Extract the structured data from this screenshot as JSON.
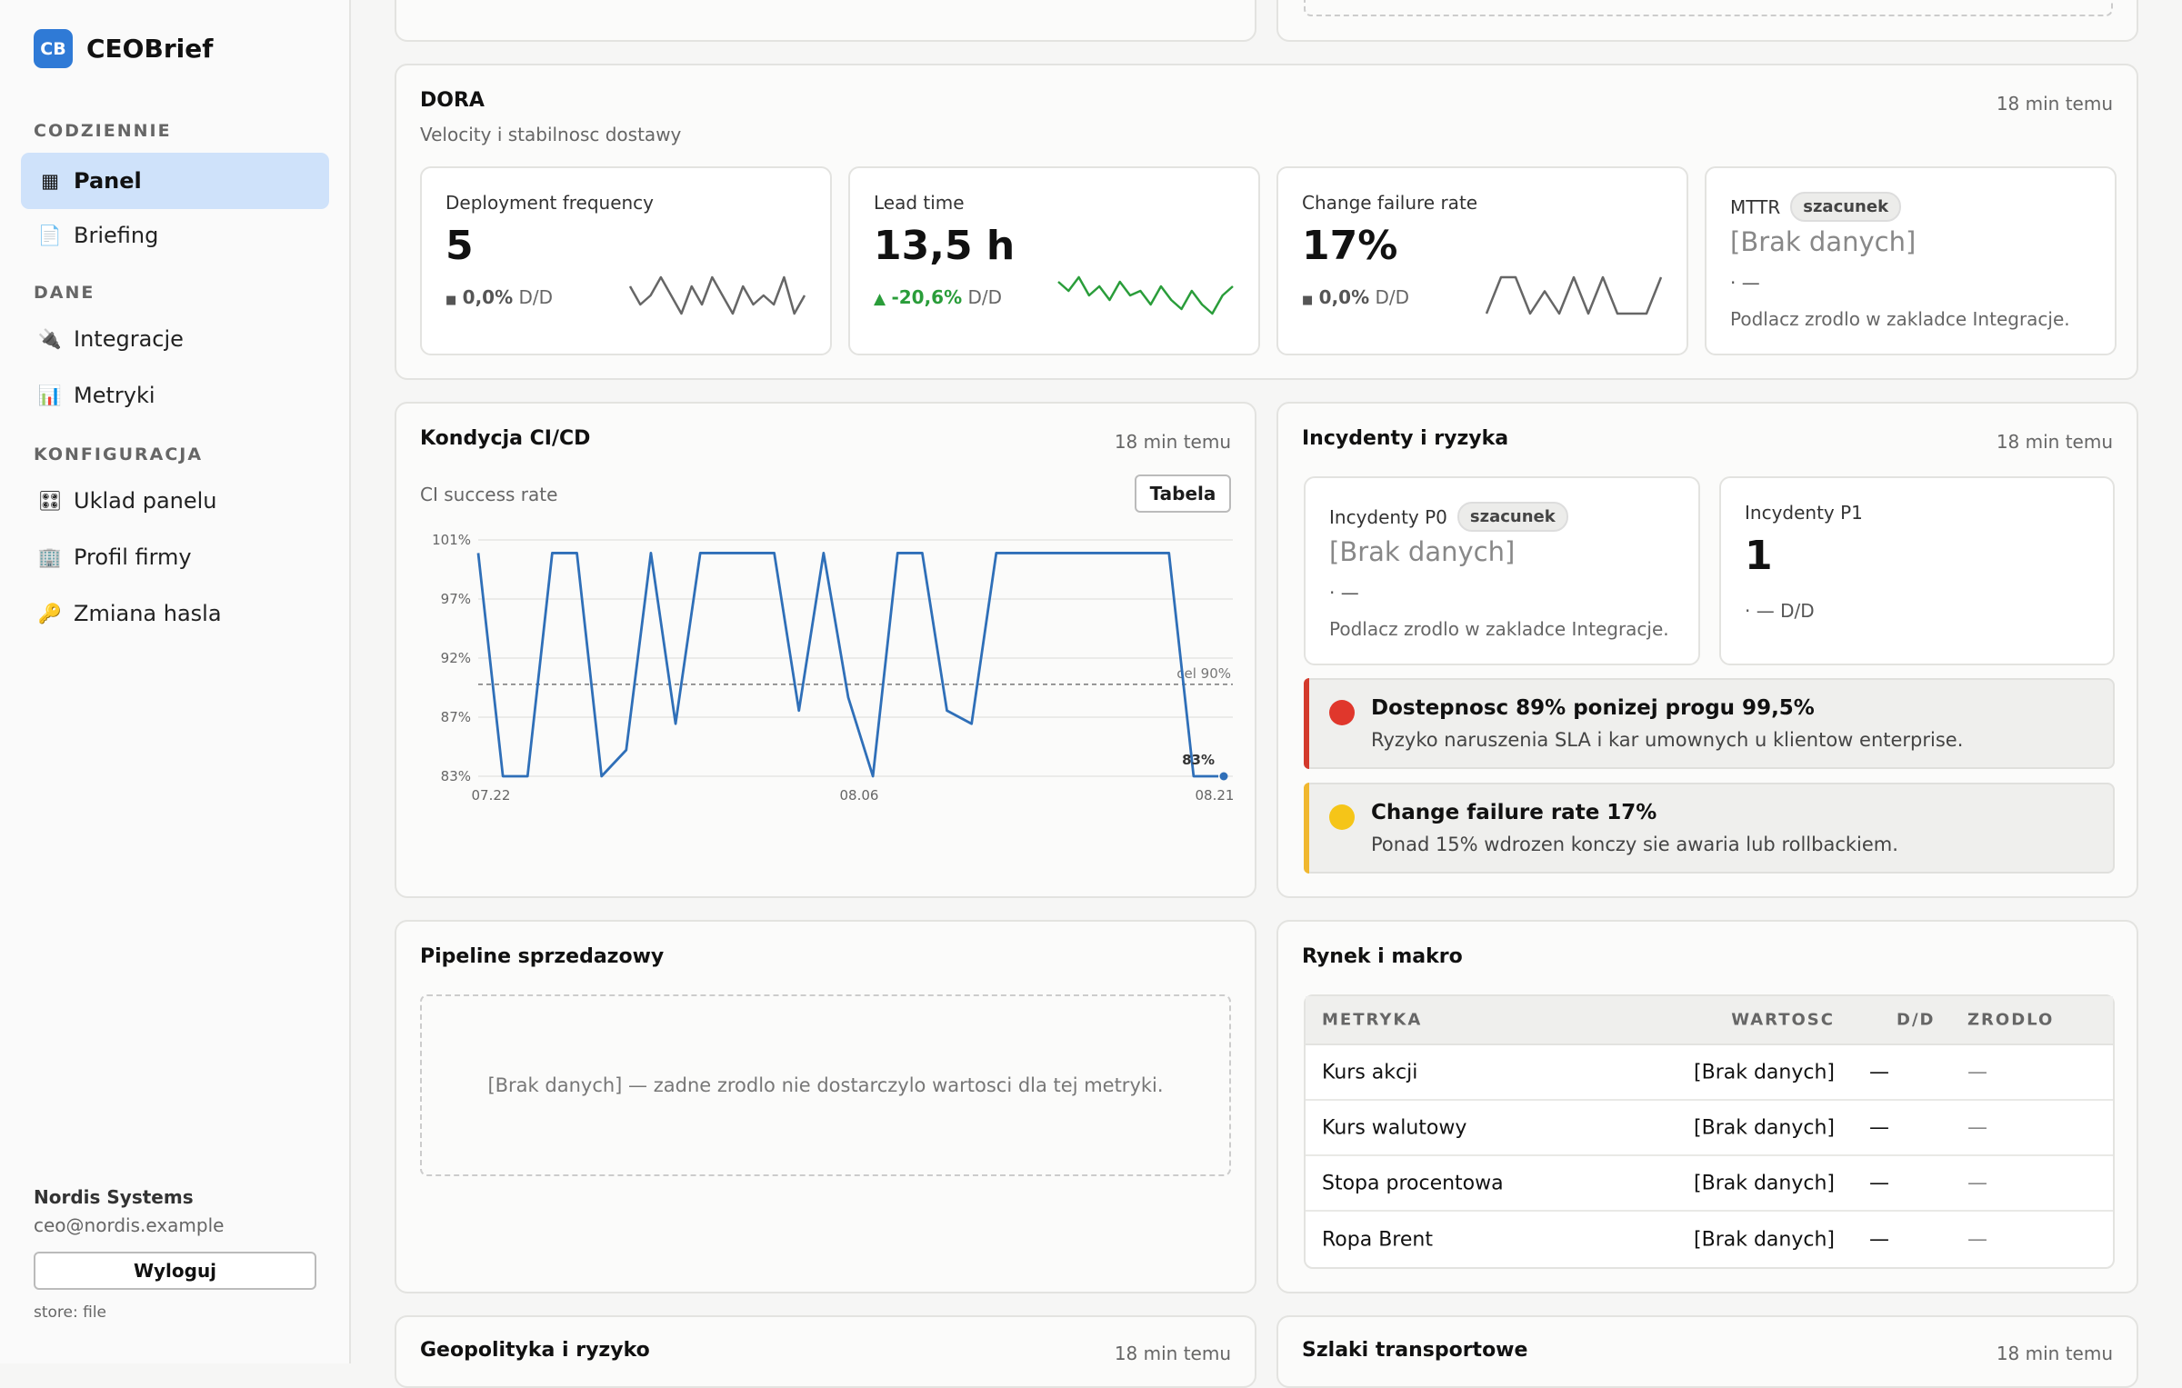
{
  "app": {
    "logo_abbr": "CB",
    "name": "CEOBrief"
  },
  "sidebar": {
    "sections": [
      "CODZIENNIE",
      "DANE",
      "KONFIGURACJA"
    ],
    "items": [
      {
        "label": "Panel",
        "icon": "dashboard-icon",
        "glyph": "▦"
      },
      {
        "label": "Briefing",
        "icon": "document-icon",
        "glyph": "📄"
      },
      {
        "label": "Integracje",
        "icon": "plug-icon",
        "glyph": "🔌"
      },
      {
        "label": "Metryki",
        "icon": "bar-chart-icon",
        "glyph": "📊"
      },
      {
        "label": "Uklad panelu",
        "icon": "sliders-icon",
        "glyph": "🎛"
      },
      {
        "label": "Profil firmy",
        "icon": "building-icon",
        "glyph": "🏢"
      },
      {
        "label": "Zmiana hasla",
        "icon": "key-icon",
        "glyph": "🔑"
      }
    ],
    "company": "Nordis Systems",
    "email": "ceo@nordis.example",
    "logout": "Wyloguj",
    "store": "store: file"
  },
  "dora": {
    "title": "DORA",
    "subtitle": "Velocity i stabilnosc dostawy",
    "time": "18 min temu",
    "cards": [
      {
        "label": "Deployment frequency",
        "value": "5",
        "delta_sym": "■",
        "delta": "0,0%",
        "delta_suffix": "D/D"
      },
      {
        "label": "Lead time",
        "value": "13,5 h",
        "delta_sym": "▲",
        "delta": "-20,6%",
        "delta_suffix": "D/D"
      },
      {
        "label": "Change failure rate",
        "value": "17%",
        "delta_sym": "■",
        "delta": "0,0%",
        "delta_suffix": "D/D"
      },
      {
        "label": "MTTR",
        "badge": "szacunek",
        "value": "[Brak danych]",
        "dots": "· —",
        "hint": "Podlacz zrodlo w zakladce Integracje."
      }
    ],
    "sparklines": [
      [
        5,
        3,
        4,
        6,
        4,
        2,
        5,
        3,
        6,
        4,
        2,
        5,
        3,
        4,
        3,
        6,
        2,
        4
      ],
      [
        14,
        12,
        15,
        11,
        13,
        10,
        14,
        11,
        12,
        9,
        13,
        10,
        8,
        12,
        9,
        7,
        11,
        13
      ],
      [
        17,
        30,
        30,
        17,
        25,
        17,
        30,
        17,
        30,
        17,
        17,
        17,
        30
      ]
    ],
    "colors": {
      "neutral": "#666666",
      "green": "#2a9d3a"
    }
  },
  "cicd": {
    "title": "Kondycja CI/CD",
    "time": "18 min temu",
    "subtitle": "CI success rate",
    "table_btn": "Tabela",
    "chart_data": {
      "type": "line",
      "series": [
        {
          "values": [
            100,
            83,
            83,
            100,
            100,
            83,
            85,
            100,
            87,
            100,
            100,
            100,
            100,
            88,
            100,
            89,
            83,
            100,
            100,
            88,
            87,
            100,
            100,
            100,
            100,
            100,
            100,
            100,
            100,
            83,
            83
          ]
        }
      ],
      "ylim": [
        83,
        101
      ],
      "yticks": [
        "101%",
        "97%",
        "92%",
        "87%",
        "83%"
      ],
      "xticks": [
        "07.22",
        "08.06",
        "08.21"
      ],
      "target": 90,
      "target_label": "cel 90%",
      "last_label": "83%",
      "color": "#2f6fb8"
    }
  },
  "incidents": {
    "title": "Incydenty i ryzyka",
    "time": "18 min temu",
    "p0": {
      "label": "Incydenty P0",
      "badge": "szacunek",
      "value": "[Brak danych]",
      "dots": "· —",
      "hint": "Podlacz zrodlo w zakladce Integracje."
    },
    "p1": {
      "label": "Incydenty P1",
      "value": "1",
      "dots": "· — D/D"
    },
    "alerts": [
      {
        "title": "Dostepnosc 89% ponizej progu 99,5%",
        "desc": "Ryzyko naruszenia SLA i kar umownych u klientow enterprise.",
        "color": "#d33a2c",
        "dot": "#e0372c"
      },
      {
        "title": "Change failure rate 17%",
        "desc": "Ponad 15% wdrozen konczy sie awaria lub rollbackiem.",
        "color": "#f0b72f",
        "dot": "#f5c518"
      }
    ]
  },
  "pipeline": {
    "title": "Pipeline sprzedazowy",
    "empty": "[Brak danych] — zadne zrodlo nie dostarczylo wartosci dla tej metryki."
  },
  "market": {
    "title": "Rynek i makro",
    "headers": [
      "METRYKA",
      "WARTOSC",
      "D/D",
      "ZRODLO"
    ],
    "rows": [
      [
        "Kurs akcji",
        "[Brak danych]",
        "—",
        "—"
      ],
      [
        "Kurs walutowy",
        "[Brak danych]",
        "—",
        "—"
      ],
      [
        "Stopa procentowa",
        "[Brak danych]",
        "—",
        "—"
      ],
      [
        "Ropa Brent",
        "[Brak danych]",
        "—",
        "—"
      ]
    ]
  },
  "bottom": {
    "left_title": "Geopolityka i ryzyko",
    "left_time": "18 min temu",
    "right_title": "Szlaki transportowe",
    "right_time": "18 min temu"
  }
}
